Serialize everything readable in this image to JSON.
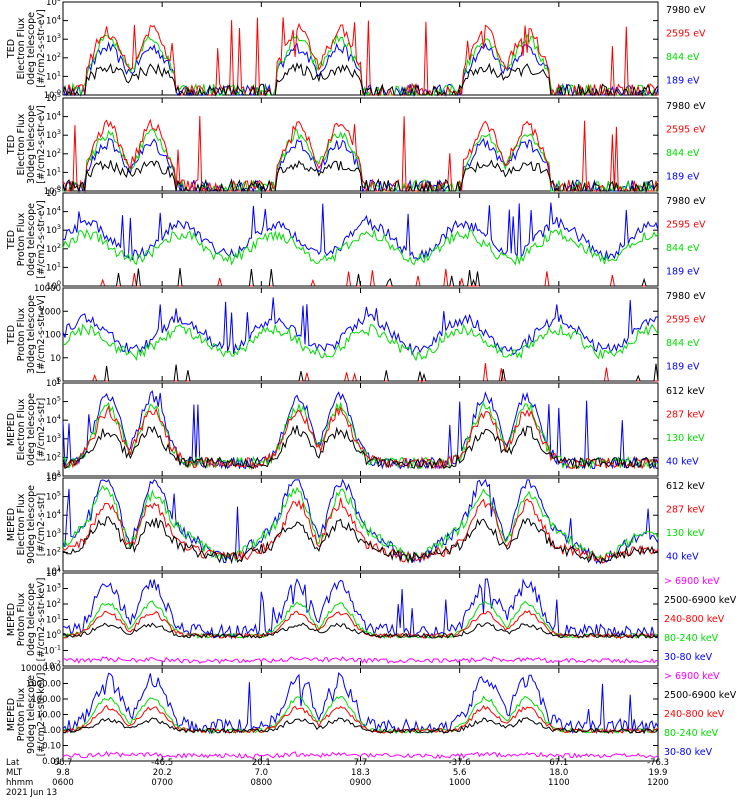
{
  "chart_data": [
    {
      "type": "line",
      "ylabel": [
        "TED",
        "Electron Flux",
        "0deg telescope",
        "[#/cm2-s-str-eV]"
      ],
      "yticks": [
        "10^-0",
        "10^1",
        "10^2",
        "10^3",
        "10^4",
        "10^5"
      ],
      "ylog": [
        0,
        5
      ],
      "legend": [
        {
          "name": "7980 eV",
          "color": "#000000"
        },
        {
          "name": "2595 eV",
          "color": "#ff0000"
        },
        {
          "name": "844 eV",
          "color": "#00dd00"
        },
        {
          "name": "189 eV",
          "color": "#0000ff"
        }
      ]
    },
    {
      "type": "line",
      "ylabel": [
        "TED",
        "Electron Flux",
        "30deg telescope",
        "[#/cm2-s-str-eV]"
      ],
      "yticks": [
        "10^-0",
        "10^1",
        "10^2",
        "10^3",
        "10^4",
        "10^5"
      ],
      "ylog": [
        0,
        5
      ],
      "legend": [
        {
          "name": "7980 eV",
          "color": "#000000"
        },
        {
          "name": "2595 eV",
          "color": "#ff0000"
        },
        {
          "name": "844 eV",
          "color": "#00dd00"
        },
        {
          "name": "189 eV",
          "color": "#0000ff"
        }
      ]
    },
    {
      "type": "line",
      "ylabel": [
        "TED",
        "Proton Flux",
        "0deg telescope",
        "[#/cm2-s-str-eV]"
      ],
      "yticks": [
        "10^0",
        "10^1",
        "10^2",
        "10^3",
        "10^4",
        "10^5"
      ],
      "ylog": [
        0,
        5
      ],
      "legend": [
        {
          "name": "7980 eV",
          "color": "#000000"
        },
        {
          "name": "2595 eV",
          "color": "#ff0000"
        },
        {
          "name": "844 eV",
          "color": "#00dd00"
        },
        {
          "name": "189 eV",
          "color": "#0000ff"
        }
      ]
    },
    {
      "type": "line",
      "ylabel": [
        "TED",
        "Proton Flux",
        "30deg telescope",
        "[#/cm2-s-str-eV]"
      ],
      "yticks": [
        "1",
        "10",
        "100",
        "1000",
        "10000"
      ],
      "ylog": [
        0,
        4
      ],
      "legend": [
        {
          "name": "7980 eV",
          "color": "#000000"
        },
        {
          "name": "2595 eV",
          "color": "#ff0000"
        },
        {
          "name": "844 eV",
          "color": "#00dd00"
        },
        {
          "name": "189 eV",
          "color": "#0000ff"
        }
      ]
    },
    {
      "type": "line",
      "ylabel": [
        "MEPED",
        "Electron Flux",
        "0deg telescope",
        "[#/cm2-s-str]"
      ],
      "yticks": [
        "10^1",
        "10^2",
        "10^3",
        "10^4",
        "10^5",
        "10^6"
      ],
      "ylog": [
        1,
        6
      ],
      "legend": [
        {
          "name": "612 keV",
          "color": "#000000"
        },
        {
          "name": "287 keV",
          "color": "#ff0000"
        },
        {
          "name": "130 keV",
          "color": "#00dd00"
        },
        {
          "name": "40 keV",
          "color": "#0000ff"
        }
      ]
    },
    {
      "type": "line",
      "ylabel": [
        "MEPED",
        "Electron Flux",
        "90deg telescope",
        "[#/cm2-s-str]"
      ],
      "yticks": [
        "10^1",
        "10^2",
        "10^3",
        "10^4",
        "10^5",
        "10^6"
      ],
      "ylog": [
        1,
        6
      ],
      "legend": [
        {
          "name": "612 keV",
          "color": "#000000"
        },
        {
          "name": "287 keV",
          "color": "#ff0000"
        },
        {
          "name": "130 keV",
          "color": "#00dd00"
        },
        {
          "name": "40 keV",
          "color": "#0000ff"
        }
      ]
    },
    {
      "type": "line",
      "ylabel": [
        "MEPED",
        "Proton Flux",
        "0deg telescope",
        "[#/cm2-s-str-keV]"
      ],
      "yticks": [
        "10^-2",
        "10^-1",
        "10^0",
        "10^1",
        "10^2",
        "10^3",
        "10^4"
      ],
      "ylog": [
        -2,
        4
      ],
      "legend": [
        {
          "name": "> 6900 keV",
          "color": "#ff00ff"
        },
        {
          "name": "2500-6900 keV",
          "color": "#000000"
        },
        {
          "name": "240-800 keV",
          "color": "#ff0000"
        },
        {
          "name": "80-240 keV",
          "color": "#00dd00"
        },
        {
          "name": "30-80 keV",
          "color": "#0000ff"
        }
      ]
    },
    {
      "type": "line",
      "ylabel": [
        "MEPED",
        "Proton Flux",
        "90deg telescope",
        "[#/cm2-s-str-keV]"
      ],
      "yticks": [
        "0.01",
        "0.10",
        "1.00",
        "10.00",
        "100.00",
        "1000.00",
        "10000.00"
      ],
      "ylog": [
        -2,
        4
      ],
      "legend": [
        {
          "name": "> 6900 keV",
          "color": "#ff00ff"
        },
        {
          "name": "2500-6900 keV",
          "color": "#000000"
        },
        {
          "name": "240-800 keV",
          "color": "#ff0000"
        },
        {
          "name": "80-240 keV",
          "color": "#00dd00"
        },
        {
          "name": "30-80 keV",
          "color": "#0000ff"
        }
      ]
    }
  ],
  "xaxis": {
    "row_labels": [
      "Lat",
      "MLT",
      "hhmm"
    ],
    "columns": [
      {
        "lat": "66.7",
        "mlt": "9.8",
        "hhmm": "0600"
      },
      {
        "lat": "-46.5",
        "mlt": "20.2",
        "hhmm": "0700"
      },
      {
        "lat": "20.1",
        "mlt": "7.0",
        "hhmm": "0800"
      },
      {
        "lat": "7.7",
        "mlt": "18.3",
        "hhmm": "0900"
      },
      {
        "lat": "-37.6",
        "mlt": "5.6",
        "hhmm": "1000"
      },
      {
        "lat": "67.1",
        "mlt": "18.0",
        "hhmm": "1100"
      },
      {
        "lat": "-76.3",
        "mlt": "19.9",
        "hhmm": "1200"
      }
    ],
    "date": "2021 Jun 13"
  }
}
